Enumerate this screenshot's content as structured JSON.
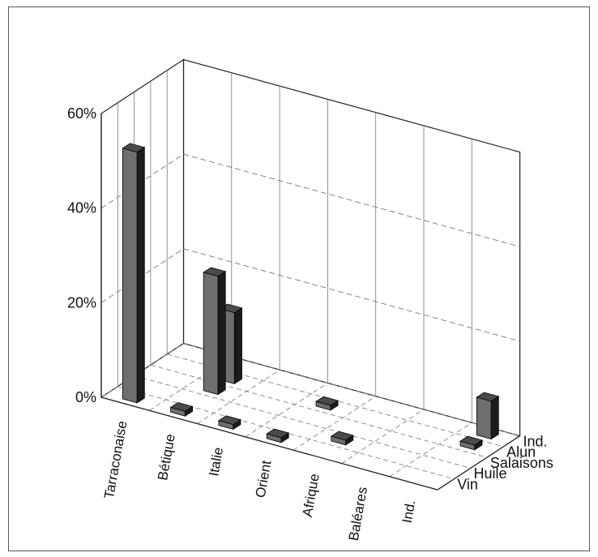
{
  "chart_data": {
    "type": "bar3d",
    "title": "",
    "xlabel": "",
    "ylabel": "",
    "ylim": [
      0,
      60
    ],
    "y_ticks": [
      "0%",
      "20%",
      "40%",
      "60%"
    ],
    "grid": true,
    "legend": "none",
    "categories": [
      "Tarraconaise",
      "Bétique",
      "Italie",
      "Orient",
      "Afrique",
      "Baléares",
      "Ind."
    ],
    "series": [
      {
        "name": "Vin",
        "values": [
          53,
          1,
          1,
          1,
          0,
          0,
          0
        ]
      },
      {
        "name": "Huile",
        "values": [
          0,
          0,
          0,
          0,
          1,
          0,
          0
        ]
      },
      {
        "name": "Salaisons",
        "values": [
          0,
          25,
          0,
          0,
          0,
          0,
          0
        ]
      },
      {
        "name": "Alun",
        "values": [
          0,
          15,
          0,
          1,
          0,
          0,
          1
        ]
      },
      {
        "name": "Ind.",
        "values": [
          0,
          0,
          0,
          0,
          0,
          0,
          8
        ]
      }
    ],
    "colors": {
      "bar_front": "#6e6e6e",
      "bar_side": "#1c1c1c",
      "bar_top": "#4a4a4a",
      "axis": "#222222",
      "grid": "#777777"
    }
  }
}
